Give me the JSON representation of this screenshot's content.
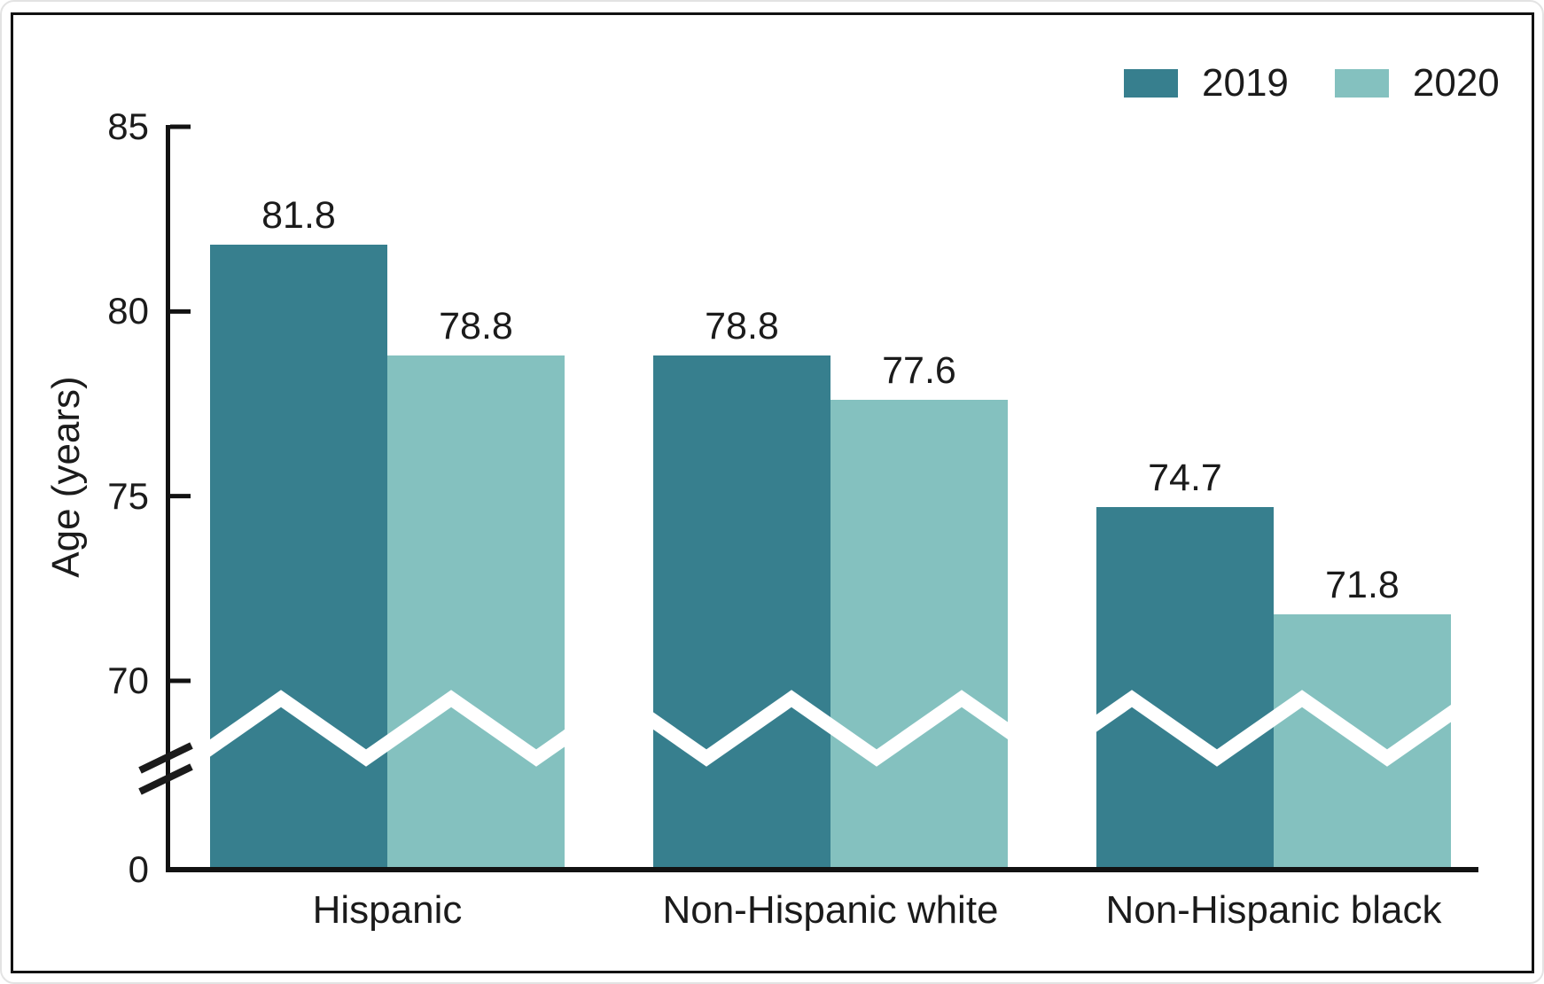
{
  "figure": {
    "y_axis_label": "Age (years)",
    "y_tick_labels": [
      "85",
      "80",
      "75",
      "70",
      "0"
    ],
    "legend": {
      "items": [
        {
          "label": "2019",
          "color": "#377f8e"
        },
        {
          "label": "2020",
          "color": "#84c1bf"
        }
      ]
    }
  },
  "chart_data": {
    "type": "bar",
    "title": "",
    "categories": [
      "Hispanic",
      "Non-Hispanic white",
      "Non-Hispanic black"
    ],
    "series": [
      {
        "name": "2019",
        "color": "#377f8e",
        "values": [
          81.8,
          78.8,
          74.7
        ]
      },
      {
        "name": "2020",
        "color": "#84c1bf",
        "values": [
          78.8,
          77.6,
          71.8
        ]
      }
    ],
    "data_labels": {
      "2019": [
        "81.8",
        "78.8",
        "74.7"
      ],
      "2020": [
        "78.8",
        "77.6",
        "71.8"
      ]
    },
    "xlabel": "",
    "ylabel": "Age (years)",
    "y_ticks": [
      0,
      70,
      75,
      80,
      85
    ],
    "ylim": [
      0,
      85
    ],
    "axis_break_between": [
      0,
      70
    ],
    "grid": false,
    "legend_position": "top-right",
    "bar_value_labels": true
  }
}
